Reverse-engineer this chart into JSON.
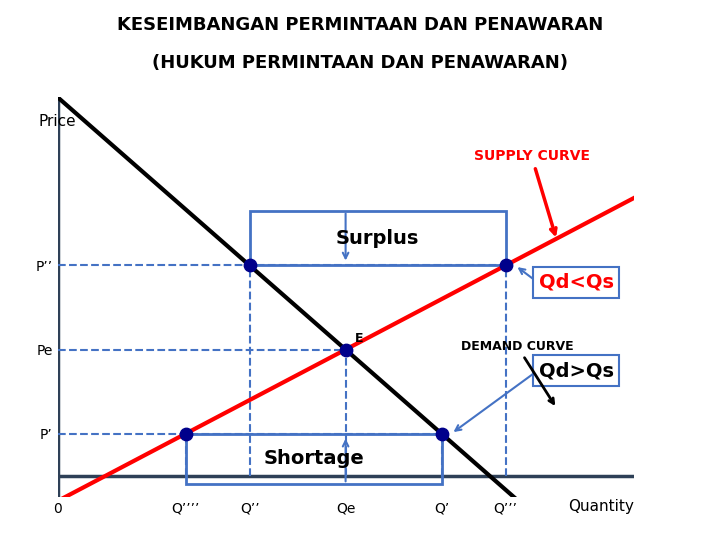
{
  "title_line1": "KESEIMBANGAN PERMINTAAN DAN PENAWARAN",
  "title_line2": "(HUKUM PERMINTAAN DAN PENAWARAN)",
  "xlabel": "Quantity",
  "ylabel": "Price",
  "x_tick_labels": [
    "0",
    "Q’’’’",
    "Q’’",
    "Qe",
    "Q’",
    "Q’’’"
  ],
  "y_tick_labels": [
    "P’",
    "Pe",
    "P’’"
  ],
  "supply_label": "SUPPLY CURVE",
  "demand_label": "DEMAND CURVE",
  "surplus_label": "Surplus",
  "shortage_label": "Shortage",
  "qd_lt_qs": "Qd<Qs",
  "qd_gt_qs": "Qd>Qs",
  "equilibrium_label": "E",
  "supply_color": "#ff0000",
  "demand_color": "#000000",
  "dot_color": "#00008B",
  "box_color": "#4472C4",
  "dashed_color": "#4472C4",
  "axis_color": "#2E4057",
  "bg_color": "#ffffff",
  "xlim": [
    0,
    9
  ],
  "ylim": [
    0,
    9
  ],
  "supply_slope": 0.8,
  "supply_int": -0.6,
  "demand_slope": -1.3333,
  "demand_int": 9.0,
  "eq_x": 4.5,
  "eq_y": 3.0,
  "pp_y": 5.0,
  "pp2_y": 1.0
}
